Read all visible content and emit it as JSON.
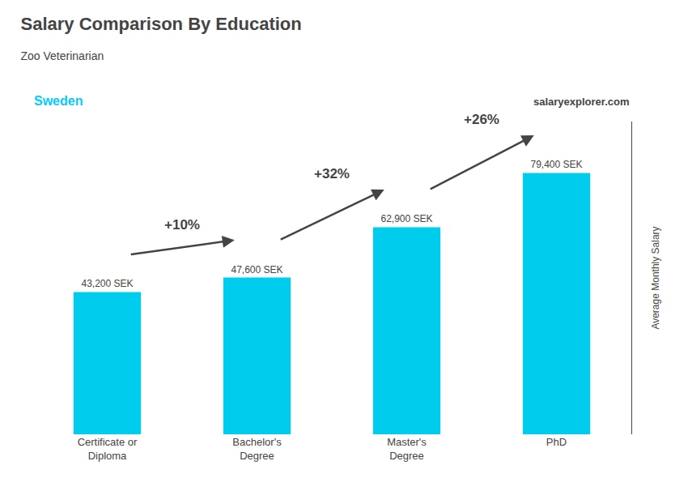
{
  "chart_data": {
    "type": "bar",
    "title": "Salary Comparison By Education",
    "subtitle": "Zoo Veterinarian",
    "ylabel": "Average Monthly Salary",
    "categories": [
      "Certificate or\nDiploma",
      "Bachelor's\nDegree",
      "Master's\nDegree",
      "PhD"
    ],
    "values": [
      43200,
      47600,
      62900,
      79400
    ],
    "value_labels": [
      "43,200 SEK",
      "47,600 SEK",
      "62,900 SEK",
      "79,400 SEK"
    ],
    "data_labels": true,
    "color": "#00ccee",
    "ylim": [
      0,
      95000
    ],
    "tick_labels": "x",
    "grid": false,
    "legend": false,
    "annotations": [
      {
        "type": "arrow",
        "text": "+10%"
      },
      {
        "type": "arrow",
        "text": "+32%"
      },
      {
        "type": "arrow",
        "text": "+26%"
      },
      {
        "type": "text",
        "text": "Sweden",
        "color": "#00ccff"
      },
      {
        "type": "text",
        "text": "salaryexplorer.com"
      }
    ]
  }
}
